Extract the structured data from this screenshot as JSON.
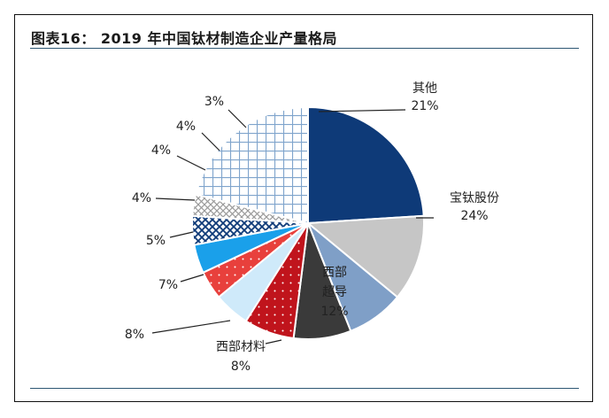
{
  "figure": {
    "title": "图表16： 2019 年中国钛材制造企业产量格局"
  },
  "chart_data": {
    "type": "pie",
    "title": "图表16： 2019 年中国钛材制造企业产量格局",
    "start_clockwise_from": "12 o'clock",
    "slices": [
      {
        "name": "宝钛股份",
        "value": 24,
        "label": "24%",
        "color": "#0e3a78",
        "pattern": "solid"
      },
      {
        "name": "西部超导",
        "value": 12,
        "label": "12%",
        "color": "#c6c6c6",
        "pattern": "solid"
      },
      {
        "name": "西部材料",
        "value": 8,
        "label": "8%",
        "color": "#7f9fc7",
        "pattern": "solid"
      },
      {
        "name": "",
        "value": 8,
        "label": "8%",
        "color": "#3a3a3a",
        "pattern": "solid"
      },
      {
        "name": "",
        "value": 7,
        "label": "7%",
        "color": "#c0141c",
        "pattern": "dots"
      },
      {
        "name": "",
        "value": 5,
        "label": "5%",
        "color": "#cfeafa",
        "pattern": "solid"
      },
      {
        "name": "",
        "value": 4,
        "label": "4%",
        "color": "#e8403c",
        "pattern": "dots"
      },
      {
        "name": "",
        "value": 4,
        "label": "4%",
        "color": "#1aa0ea",
        "pattern": "solid"
      },
      {
        "name": "",
        "value": 4,
        "label": "4%",
        "color": "#0e3a78",
        "pattern": "crosshatch"
      },
      {
        "name": "",
        "value": 3,
        "label": "3%",
        "color": "#9a9a9a",
        "pattern": "crosshatch"
      },
      {
        "name": "其他",
        "value": 21,
        "label": "21%",
        "color": "#7fa4cc",
        "pattern": "grid"
      }
    ]
  }
}
